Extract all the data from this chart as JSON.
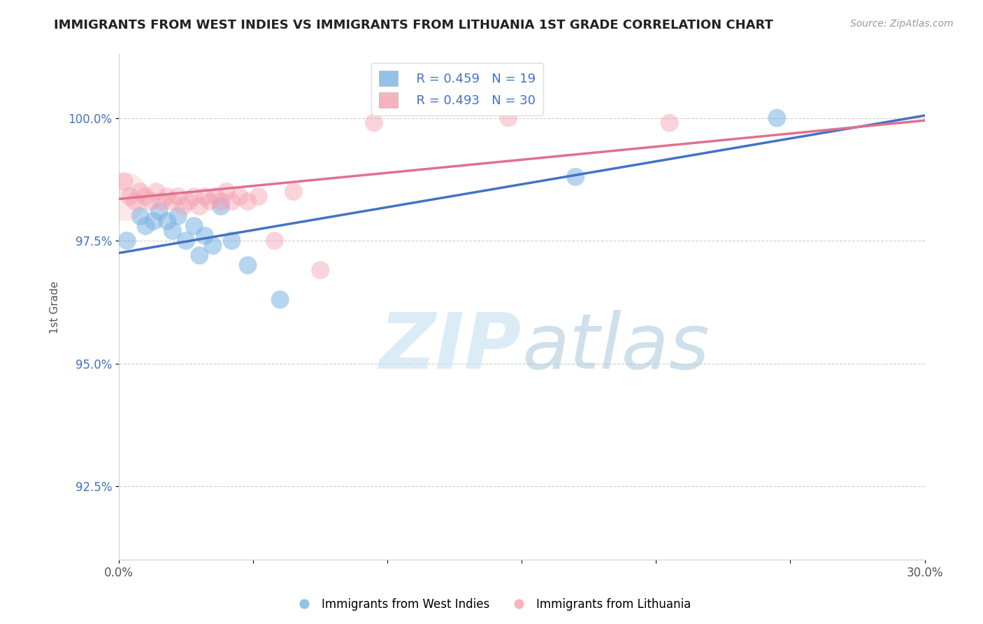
{
  "title": "IMMIGRANTS FROM WEST INDIES VS IMMIGRANTS FROM LITHUANIA 1ST GRADE CORRELATION CHART",
  "source": "Source: ZipAtlas.com",
  "ylabel": "1st Grade",
  "xlim": [
    0.0,
    0.3
  ],
  "ylim": [
    0.91,
    1.013
  ],
  "xticks": [
    0.0,
    0.05,
    0.1,
    0.15,
    0.2,
    0.25,
    0.3
  ],
  "xticklabels": [
    "0.0%",
    "",
    "",
    "",
    "",
    "",
    "30.0%"
  ],
  "yticks": [
    0.925,
    0.95,
    0.975,
    1.0
  ],
  "yticklabels": [
    "92.5%",
    "95.0%",
    "97.5%",
    "100.0%"
  ],
  "blue_color": "#7ab3e0",
  "pink_color": "#f4a0b0",
  "blue_line_color": "#4472c4",
  "pink_line_color": "#e07090",
  "legend_R_blue": "R = 0.459",
  "legend_N_blue": "N = 19",
  "legend_R_pink": "R = 0.493",
  "legend_N_pink": "N = 30",
  "blue_points_x": [
    0.003,
    0.008,
    0.01,
    0.013,
    0.015,
    0.018,
    0.02,
    0.022,
    0.025,
    0.028,
    0.03,
    0.032,
    0.035,
    0.038,
    0.042,
    0.048,
    0.06,
    0.17,
    0.245
  ],
  "blue_points_y": [
    0.975,
    0.98,
    0.978,
    0.979,
    0.981,
    0.979,
    0.977,
    0.98,
    0.975,
    0.978,
    0.972,
    0.976,
    0.974,
    0.982,
    0.975,
    0.97,
    0.963,
    0.988,
    1.0
  ],
  "pink_points_x": [
    0.002,
    0.004,
    0.006,
    0.008,
    0.01,
    0.012,
    0.014,
    0.016,
    0.018,
    0.02,
    0.022,
    0.024,
    0.026,
    0.028,
    0.03,
    0.032,
    0.034,
    0.036,
    0.038,
    0.04,
    0.042,
    0.045,
    0.048,
    0.052,
    0.058,
    0.065,
    0.075,
    0.095,
    0.145,
    0.205
  ],
  "pink_points_y": [
    0.987,
    0.984,
    0.983,
    0.985,
    0.984,
    0.983,
    0.985,
    0.983,
    0.984,
    0.983,
    0.984,
    0.982,
    0.983,
    0.984,
    0.982,
    0.984,
    0.983,
    0.984,
    0.983,
    0.985,
    0.983,
    0.984,
    0.983,
    0.984,
    0.975,
    0.985,
    0.969,
    0.999,
    1.0,
    0.999
  ],
  "blue_trend_x": [
    0.0,
    0.3
  ],
  "blue_trend_y": [
    0.9725,
    1.0005
  ],
  "pink_trend_x": [
    0.0,
    0.3
  ],
  "pink_trend_y": [
    0.9835,
    0.9995
  ]
}
